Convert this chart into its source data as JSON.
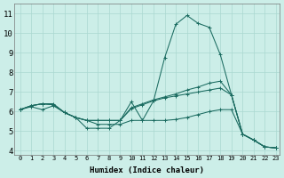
{
  "xlabel": "Humidex (Indice chaleur)",
  "bg_color": "#cceee8",
  "grid_color": "#aad8d0",
  "line_color": "#1a6b60",
  "xlim": [
    -0.5,
    23.3
  ],
  "ylim": [
    3.8,
    11.5
  ],
  "xticks": [
    0,
    1,
    2,
    3,
    4,
    5,
    6,
    7,
    8,
    9,
    10,
    11,
    12,
    13,
    14,
    15,
    16,
    17,
    18,
    19,
    20,
    21,
    22,
    23
  ],
  "yticks": [
    4,
    5,
    6,
    7,
    8,
    9,
    10,
    11
  ],
  "line1_x": [
    0,
    1,
    2,
    3,
    4,
    5,
    6,
    7,
    8,
    9,
    10,
    11,
    12,
    13,
    14,
    15,
    16,
    17,
    18,
    19,
    20,
    21,
    22,
    23
  ],
  "line1_y": [
    6.1,
    6.3,
    6.4,
    6.4,
    5.95,
    5.7,
    5.15,
    5.15,
    5.15,
    5.55,
    6.5,
    5.55,
    6.55,
    8.75,
    10.45,
    10.9,
    10.5,
    10.3,
    8.9,
    6.85,
    4.85,
    4.55,
    4.2,
    4.15
  ],
  "line2_x": [
    0,
    1,
    2,
    3,
    4,
    5,
    6,
    7,
    8,
    9,
    10,
    11,
    12,
    13,
    14,
    15,
    16,
    17,
    18,
    19,
    20,
    21,
    22,
    23
  ],
  "line2_y": [
    6.1,
    6.25,
    6.1,
    6.3,
    5.95,
    5.7,
    5.55,
    5.35,
    5.35,
    5.35,
    5.55,
    5.55,
    5.55,
    5.55,
    5.6,
    5.7,
    5.85,
    6.0,
    6.1,
    6.1,
    4.85,
    4.55,
    4.2,
    4.15
  ],
  "line3_x": [
    0,
    1,
    2,
    3,
    4,
    5,
    6,
    7,
    8,
    9,
    10,
    11,
    12,
    13,
    14,
    15,
    16,
    17,
    18,
    19,
    20,
    21,
    22,
    23
  ],
  "line3_y": [
    6.1,
    6.3,
    6.4,
    6.35,
    5.95,
    5.7,
    5.55,
    5.55,
    5.55,
    5.55,
    6.15,
    6.35,
    6.55,
    6.7,
    6.8,
    6.9,
    7.0,
    7.1,
    7.2,
    6.85,
    4.85,
    4.55,
    4.2,
    4.15
  ],
  "line4_x": [
    0,
    1,
    2,
    3,
    4,
    5,
    6,
    7,
    8,
    9,
    10,
    11,
    12,
    13,
    14,
    15,
    16,
    17,
    18,
    19,
    20,
    21,
    22,
    23
  ],
  "line4_y": [
    6.1,
    6.3,
    6.4,
    6.35,
    5.95,
    5.7,
    5.55,
    5.55,
    5.55,
    5.55,
    6.2,
    6.4,
    6.6,
    6.75,
    6.9,
    7.1,
    7.25,
    7.45,
    7.55,
    6.85,
    4.85,
    4.55,
    4.2,
    4.15
  ]
}
